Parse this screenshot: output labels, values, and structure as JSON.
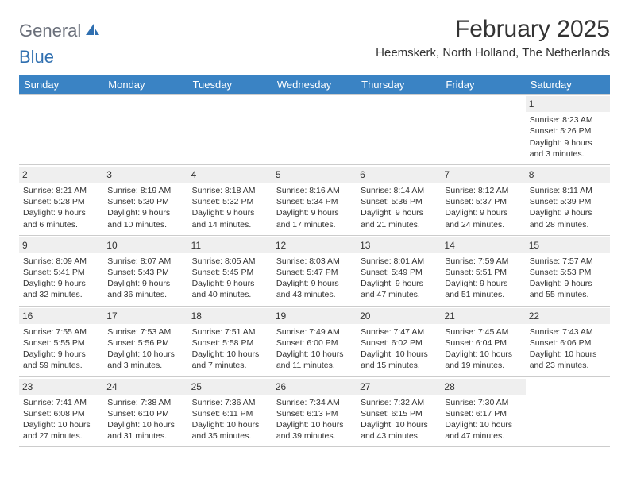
{
  "logo": {
    "general": "General",
    "blue": "Blue"
  },
  "title": "February 2025",
  "location": "Heemskerk, North Holland, The Netherlands",
  "colors": {
    "header_bg": "#3a83c4",
    "header_text": "#ffffff",
    "daynum_bg": "#efefef",
    "text": "#333333",
    "border": "#cccccc",
    "logo_gray": "#6a6f7a",
    "logo_blue": "#2f6fb0"
  },
  "typography": {
    "title_fontsize": 30,
    "location_fontsize": 15,
    "header_fontsize": 13,
    "daynum_fontsize": 12,
    "body_fontsize": 10.5
  },
  "day_labels": [
    "Sunday",
    "Monday",
    "Tuesday",
    "Wednesday",
    "Thursday",
    "Friday",
    "Saturday"
  ],
  "weeks": [
    [
      null,
      null,
      null,
      null,
      null,
      null,
      {
        "n": "1",
        "sunrise": "Sunrise: 8:23 AM",
        "sunset": "Sunset: 5:26 PM",
        "daylight1": "Daylight: 9 hours",
        "daylight2": "and 3 minutes."
      }
    ],
    [
      {
        "n": "2",
        "sunrise": "Sunrise: 8:21 AM",
        "sunset": "Sunset: 5:28 PM",
        "daylight1": "Daylight: 9 hours",
        "daylight2": "and 6 minutes."
      },
      {
        "n": "3",
        "sunrise": "Sunrise: 8:19 AM",
        "sunset": "Sunset: 5:30 PM",
        "daylight1": "Daylight: 9 hours",
        "daylight2": "and 10 minutes."
      },
      {
        "n": "4",
        "sunrise": "Sunrise: 8:18 AM",
        "sunset": "Sunset: 5:32 PM",
        "daylight1": "Daylight: 9 hours",
        "daylight2": "and 14 minutes."
      },
      {
        "n": "5",
        "sunrise": "Sunrise: 8:16 AM",
        "sunset": "Sunset: 5:34 PM",
        "daylight1": "Daylight: 9 hours",
        "daylight2": "and 17 minutes."
      },
      {
        "n": "6",
        "sunrise": "Sunrise: 8:14 AM",
        "sunset": "Sunset: 5:36 PM",
        "daylight1": "Daylight: 9 hours",
        "daylight2": "and 21 minutes."
      },
      {
        "n": "7",
        "sunrise": "Sunrise: 8:12 AM",
        "sunset": "Sunset: 5:37 PM",
        "daylight1": "Daylight: 9 hours",
        "daylight2": "and 24 minutes."
      },
      {
        "n": "8",
        "sunrise": "Sunrise: 8:11 AM",
        "sunset": "Sunset: 5:39 PM",
        "daylight1": "Daylight: 9 hours",
        "daylight2": "and 28 minutes."
      }
    ],
    [
      {
        "n": "9",
        "sunrise": "Sunrise: 8:09 AM",
        "sunset": "Sunset: 5:41 PM",
        "daylight1": "Daylight: 9 hours",
        "daylight2": "and 32 minutes."
      },
      {
        "n": "10",
        "sunrise": "Sunrise: 8:07 AM",
        "sunset": "Sunset: 5:43 PM",
        "daylight1": "Daylight: 9 hours",
        "daylight2": "and 36 minutes."
      },
      {
        "n": "11",
        "sunrise": "Sunrise: 8:05 AM",
        "sunset": "Sunset: 5:45 PM",
        "daylight1": "Daylight: 9 hours",
        "daylight2": "and 40 minutes."
      },
      {
        "n": "12",
        "sunrise": "Sunrise: 8:03 AM",
        "sunset": "Sunset: 5:47 PM",
        "daylight1": "Daylight: 9 hours",
        "daylight2": "and 43 minutes."
      },
      {
        "n": "13",
        "sunrise": "Sunrise: 8:01 AM",
        "sunset": "Sunset: 5:49 PM",
        "daylight1": "Daylight: 9 hours",
        "daylight2": "and 47 minutes."
      },
      {
        "n": "14",
        "sunrise": "Sunrise: 7:59 AM",
        "sunset": "Sunset: 5:51 PM",
        "daylight1": "Daylight: 9 hours",
        "daylight2": "and 51 minutes."
      },
      {
        "n": "15",
        "sunrise": "Sunrise: 7:57 AM",
        "sunset": "Sunset: 5:53 PM",
        "daylight1": "Daylight: 9 hours",
        "daylight2": "and 55 minutes."
      }
    ],
    [
      {
        "n": "16",
        "sunrise": "Sunrise: 7:55 AM",
        "sunset": "Sunset: 5:55 PM",
        "daylight1": "Daylight: 9 hours",
        "daylight2": "and 59 minutes."
      },
      {
        "n": "17",
        "sunrise": "Sunrise: 7:53 AM",
        "sunset": "Sunset: 5:56 PM",
        "daylight1": "Daylight: 10 hours",
        "daylight2": "and 3 minutes."
      },
      {
        "n": "18",
        "sunrise": "Sunrise: 7:51 AM",
        "sunset": "Sunset: 5:58 PM",
        "daylight1": "Daylight: 10 hours",
        "daylight2": "and 7 minutes."
      },
      {
        "n": "19",
        "sunrise": "Sunrise: 7:49 AM",
        "sunset": "Sunset: 6:00 PM",
        "daylight1": "Daylight: 10 hours",
        "daylight2": "and 11 minutes."
      },
      {
        "n": "20",
        "sunrise": "Sunrise: 7:47 AM",
        "sunset": "Sunset: 6:02 PM",
        "daylight1": "Daylight: 10 hours",
        "daylight2": "and 15 minutes."
      },
      {
        "n": "21",
        "sunrise": "Sunrise: 7:45 AM",
        "sunset": "Sunset: 6:04 PM",
        "daylight1": "Daylight: 10 hours",
        "daylight2": "and 19 minutes."
      },
      {
        "n": "22",
        "sunrise": "Sunrise: 7:43 AM",
        "sunset": "Sunset: 6:06 PM",
        "daylight1": "Daylight: 10 hours",
        "daylight2": "and 23 minutes."
      }
    ],
    [
      {
        "n": "23",
        "sunrise": "Sunrise: 7:41 AM",
        "sunset": "Sunset: 6:08 PM",
        "daylight1": "Daylight: 10 hours",
        "daylight2": "and 27 minutes."
      },
      {
        "n": "24",
        "sunrise": "Sunrise: 7:38 AM",
        "sunset": "Sunset: 6:10 PM",
        "daylight1": "Daylight: 10 hours",
        "daylight2": "and 31 minutes."
      },
      {
        "n": "25",
        "sunrise": "Sunrise: 7:36 AM",
        "sunset": "Sunset: 6:11 PM",
        "daylight1": "Daylight: 10 hours",
        "daylight2": "and 35 minutes."
      },
      {
        "n": "26",
        "sunrise": "Sunrise: 7:34 AM",
        "sunset": "Sunset: 6:13 PM",
        "daylight1": "Daylight: 10 hours",
        "daylight2": "and 39 minutes."
      },
      {
        "n": "27",
        "sunrise": "Sunrise: 7:32 AM",
        "sunset": "Sunset: 6:15 PM",
        "daylight1": "Daylight: 10 hours",
        "daylight2": "and 43 minutes."
      },
      {
        "n": "28",
        "sunrise": "Sunrise: 7:30 AM",
        "sunset": "Sunset: 6:17 PM",
        "daylight1": "Daylight: 10 hours",
        "daylight2": "and 47 minutes."
      },
      null
    ]
  ]
}
